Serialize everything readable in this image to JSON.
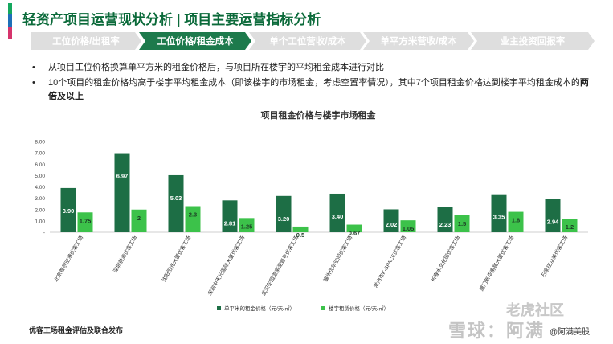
{
  "header": {
    "title": "轻资产项目运营现状分析 | 项目主要运营指标分析",
    "accent_colors": [
      "#14a85e",
      "#1e6fb8",
      "#d6336c"
    ]
  },
  "steps": [
    {
      "label": "工位价格/出租率",
      "active": false
    },
    {
      "label": "工位价格/租金成本",
      "active": true
    },
    {
      "label": "单个工位营收/成本",
      "active": false
    },
    {
      "label": "单平方米营收/成本",
      "active": false
    },
    {
      "label": "业主投资回报率",
      "active": false
    }
  ],
  "bullets": [
    {
      "text": "从项目工位价格换算单平方米的租金价格后，与项目所在楼宇的平均租金成本进行对比",
      "bold": ""
    },
    {
      "text": "10个项目的租金价格均高于楼宇平均租金成本（即该楼宇的市场租金，考虑空置率情况），其中7个项目租金价格达到楼宇平均租金成本的",
      "bold": "两倍及以上"
    }
  ],
  "bullet_symbol": "•",
  "footer": {
    "source": "优客工场租金评估及联合发布"
  },
  "watermark": {
    "line1": "老虎社区",
    "line2": "雪球：阿满",
    "user": "@阿满美股"
  },
  "colors": {
    "dark_green": "#1d6e45",
    "light_green": "#3cc24a",
    "step_active": "#1d7a4c",
    "step_inactive": "#dedede"
  },
  "chart_data": {
    "type": "bar",
    "title": "项目租金价格与楼宇市场租金",
    "categories": [
      "北京首创空港优客工场",
      "深圳前海优客工场",
      "沈阳阳光大厦优客工场",
      "深圳中天元国际大厦优客工场",
      "武汉花园道南湖壹号优客工场",
      "福州优华空间优客工场",
      "常州市K-SPACE优客工场",
      "长春水文化园优客工场",
      "厦门新华南路大厦优客工场",
      "石家庄众美优客工场"
    ],
    "series": [
      {
        "name": "单平米的租金价格（元/天/㎡）",
        "color": "#1d6e45",
        "values": [
          3.9,
          6.97,
          5.03,
          2.81,
          3.2,
          3.4,
          2.02,
          2.23,
          3.35,
          2.94
        ],
        "labels": [
          "3.90",
          "6.97",
          "5.03",
          "2.81",
          "3.20",
          "3.40",
          "2.02",
          "2.23",
          "3.35",
          "2.94"
        ]
      },
      {
        "name": "楼宇租赁价格（元/天/㎡）",
        "color": "#3cc24a",
        "values": [
          1.75,
          2,
          2.3,
          1.25,
          0.5,
          0.67,
          1.05,
          1.5,
          1.8,
          1.2
        ],
        "labels": [
          "1.75",
          "2",
          "2.3",
          "1.25",
          "0.5",
          "0.67",
          "1.05",
          "1.5",
          "1.8",
          "1.2"
        ]
      }
    ],
    "yticks": [
      "8.00",
      "7.00",
      "6.00",
      "5.00",
      "4.00",
      "3.00",
      "2.00",
      "1.00",
      "-"
    ],
    "ylim": [
      0,
      8
    ],
    "grid": false,
    "legend": "bottom"
  }
}
